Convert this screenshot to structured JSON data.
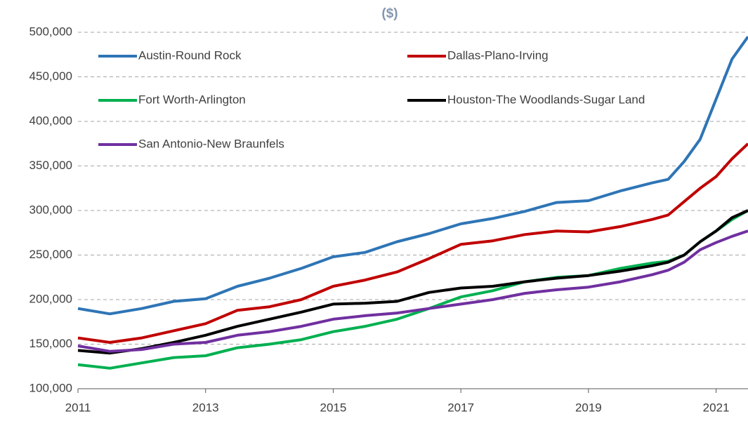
{
  "chart_data": {
    "type": "line",
    "title": "($)",
    "x": [
      2011,
      2011.5,
      2012,
      2012.5,
      2013,
      2013.5,
      2014,
      2014.5,
      2015,
      2015.5,
      2016,
      2016.5,
      2017,
      2017.5,
      2018,
      2018.5,
      2019,
      2019.5,
      2020,
      2020.25,
      2020.5,
      2020.75,
      2021,
      2021.25,
      2021.5
    ],
    "series": [
      {
        "name": "Austin-Round Rock",
        "color": "#2e75b6",
        "values": [
          190000,
          184000,
          190000,
          198000,
          201000,
          215000,
          224000,
          235000,
          248000,
          253000,
          265000,
          274000,
          285000,
          291000,
          299000,
          309000,
          311000,
          322000,
          331000,
          335000,
          355000,
          380000,
          425000,
          470000,
          495000
        ]
      },
      {
        "name": "Dallas-Plano-Irving",
        "color": "#c00000",
        "values": [
          157000,
          152000,
          157000,
          165000,
          173000,
          188000,
          192000,
          200000,
          215000,
          222000,
          231000,
          246000,
          262000,
          266000,
          273000,
          277000,
          276000,
          282000,
          290000,
          295000,
          310000,
          325000,
          338000,
          358000,
          375000
        ]
      },
      {
        "name": "Fort Worth-Arlington",
        "color": "#00b050",
        "values": [
          127000,
          123000,
          129000,
          135000,
          137000,
          146000,
          150000,
          155000,
          164000,
          170000,
          178000,
          190000,
          203000,
          210000,
          220000,
          225000,
          227000,
          235000,
          241000,
          243000,
          250000,
          265000,
          277000,
          290000,
          300000
        ]
      },
      {
        "name": "Houston-The Woodlands-Sugar Land",
        "color": "#000000",
        "values": [
          143000,
          140000,
          145000,
          152000,
          160000,
          170000,
          178000,
          186000,
          195000,
          196000,
          198000,
          208000,
          213000,
          215000,
          220000,
          224000,
          227000,
          232000,
          238000,
          242000,
          250000,
          265000,
          277000,
          292000,
          300000
        ]
      },
      {
        "name": "San Antonio-New Braunfels",
        "color": "#7030a0",
        "values": [
          148000,
          142000,
          144000,
          150000,
          152000,
          160000,
          164000,
          170000,
          178000,
          182000,
          185000,
          190000,
          195000,
          200000,
          207000,
          211000,
          214000,
          220000,
          228000,
          233000,
          242000,
          256000,
          264000,
          271000,
          277000
        ]
      }
    ],
    "xlim": [
      2011,
      2021.5
    ],
    "xticks": [
      2011,
      2013,
      2015,
      2017,
      2019,
      2021
    ],
    "ylim": [
      100000,
      500000
    ],
    "yticks": [
      {
        "value": 100000,
        "label": "100,000"
      },
      {
        "value": 150000,
        "label": "150,000"
      },
      {
        "value": 200000,
        "label": "200,000"
      },
      {
        "value": 250000,
        "label": "250,000"
      },
      {
        "value": 300000,
        "label": "300,000"
      },
      {
        "value": 350000,
        "label": "350,000"
      },
      {
        "value": 400000,
        "label": "400,000"
      },
      {
        "value": 450000,
        "label": "450,000"
      },
      {
        "value": 500000,
        "label": "500,000"
      }
    ],
    "grid": true
  }
}
